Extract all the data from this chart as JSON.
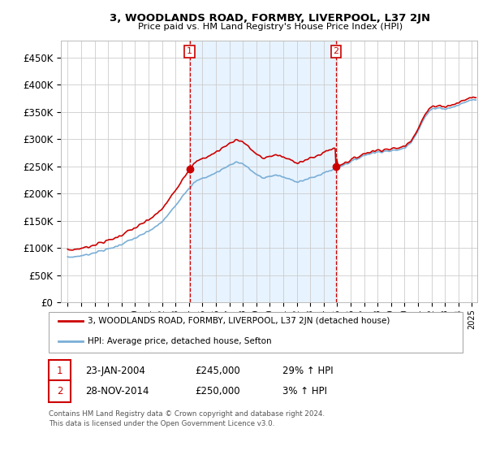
{
  "title": "3, WOODLANDS ROAD, FORMBY, LIVERPOOL, L37 2JN",
  "subtitle": "Price paid vs. HM Land Registry's House Price Index (HPI)",
  "legend_line1": "3, WOODLANDS ROAD, FORMBY, LIVERPOOL, L37 2JN (detached house)",
  "legend_line2": "HPI: Average price, detached house, Sefton",
  "annotation1_label": "1",
  "annotation1_date": "23-JAN-2004",
  "annotation1_price": "£245,000",
  "annotation1_hpi": "29% ↑ HPI",
  "annotation2_label": "2",
  "annotation2_date": "28-NOV-2014",
  "annotation2_price": "£250,000",
  "annotation2_hpi": "3% ↑ HPI",
  "sale1_year": 2004.06,
  "sale1_price": 245000,
  "sale2_year": 2014.92,
  "sale2_price": 250000,
  "vline1_year": 2004.06,
  "vline2_year": 2014.92,
  "footer": "Contains HM Land Registry data © Crown copyright and database right 2024.\nThis data is licensed under the Open Government Licence v3.0.",
  "red_color": "#cc0000",
  "blue_color": "#7aaed6",
  "shade_color": "#ddeeff",
  "background_color": "#ffffff",
  "grid_color": "#cccccc",
  "ylim_max": 480000,
  "xlim_start": 1994.5,
  "xlim_end": 2025.4
}
